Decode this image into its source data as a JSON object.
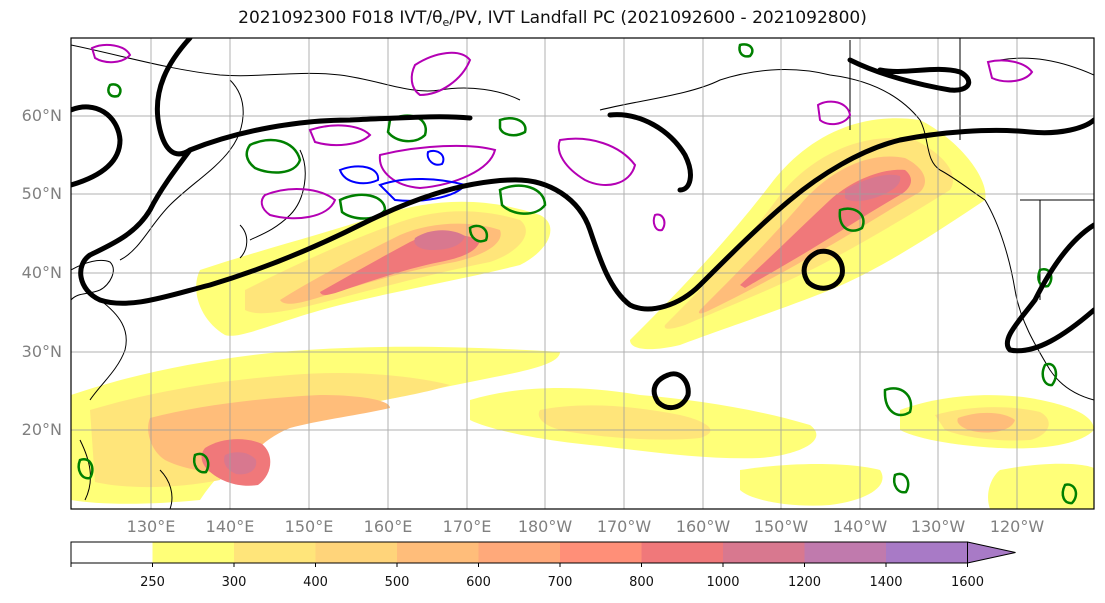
{
  "title": {
    "prefix": "2021092300 F018 IVT/",
    "theta": "θ",
    "theta_sub": "e",
    "suffix": "/PV, IVT Landfall PC (2021092600 - 2021092800)"
  },
  "lat_ticks": [
    "60°N",
    "50°N",
    "40°N",
    "30°N",
    "20°N"
  ],
  "lon_ticks": [
    "130°E",
    "140°E",
    "150°E",
    "160°E",
    "170°E",
    "180°W",
    "170°W",
    "160°W",
    "150°W",
    "140°W",
    "130°W",
    "120°W"
  ],
  "colorbar": {
    "labels": [
      "250",
      "300",
      "400",
      "500",
      "600",
      "700",
      "800",
      "1000",
      "1200",
      "1400",
      "1600"
    ],
    "colors": [
      "#ffffff",
      "#ffff78",
      "#ffe57a",
      "#ffd47a",
      "#ffbd7a",
      "#ffa97a",
      "#ff8f78",
      "#f0787a",
      "#d8788f",
      "#c07aad",
      "#a87ac6"
    ]
  }
}
